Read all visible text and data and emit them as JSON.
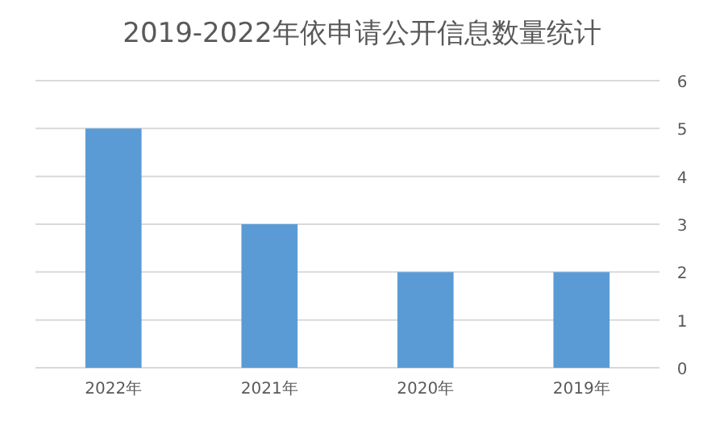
{
  "chart_data": {
    "type": "bar",
    "title": "2019-2022年依申请公开信息数量统计",
    "categories": [
      "2022年",
      "2021年",
      "2020年",
      "2019年"
    ],
    "values": [
      5,
      3,
      2,
      2
    ],
    "color": "#5b9bd5",
    "ylim": [
      0,
      6
    ],
    "yticks": [
      0,
      1,
      2,
      3,
      4,
      5,
      6
    ],
    "grid": "y"
  }
}
